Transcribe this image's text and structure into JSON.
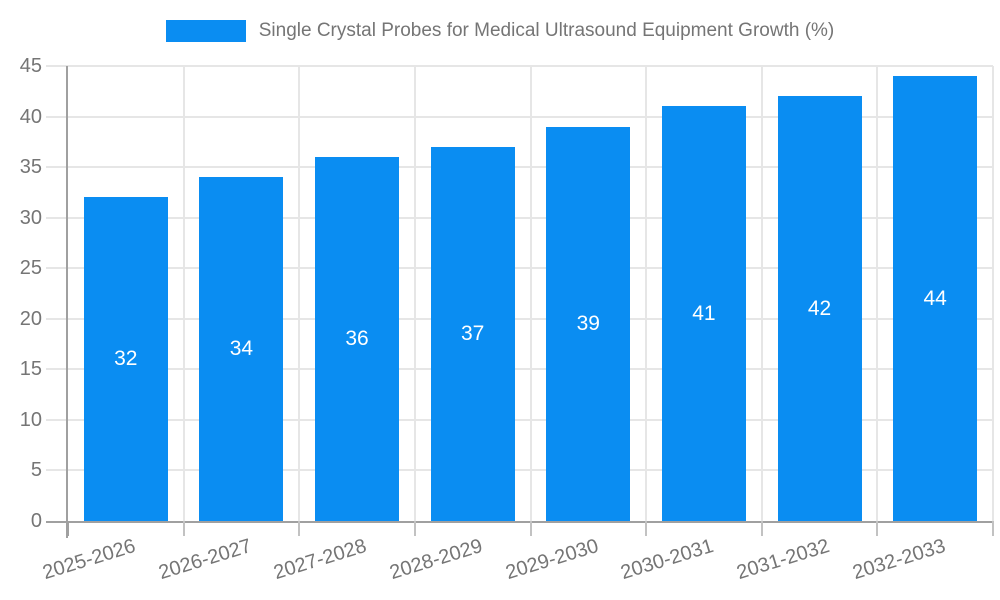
{
  "legend": {
    "series_label": "Single Crystal Probes for Medical Ultrasound Equipment Growth (%)"
  },
  "chart_data": {
    "type": "bar",
    "title": "Single Crystal Probes for Medical Ultrasound Equipment Growth (%)",
    "categories": [
      "2025-2026",
      "2026-2027",
      "2027-2028",
      "2028-2029",
      "2029-2030",
      "2030-2031",
      "2031-2032",
      "2032-2033"
    ],
    "values": [
      32,
      34,
      36,
      37,
      39,
      41,
      42,
      44
    ],
    "xlabel": "",
    "ylabel": "",
    "ylim": [
      0,
      45
    ],
    "yticks": [
      0,
      5,
      10,
      15,
      20,
      25,
      30,
      35,
      40,
      45
    ],
    "grid": true,
    "legend_position": "top-center",
    "bar_label_position": "center-of-bar",
    "x_tick_label_rotation_deg": -17,
    "colors": {
      "bar": "#0a8df2",
      "bar_label": "#ffffff",
      "grid_line": "#e6e6e6",
      "axis_line": "#a0a0a0",
      "tick_mark": "#c2c2c2",
      "tick_label": "#757575",
      "legend_text": "#757575",
      "background": "#ffffff"
    }
  }
}
